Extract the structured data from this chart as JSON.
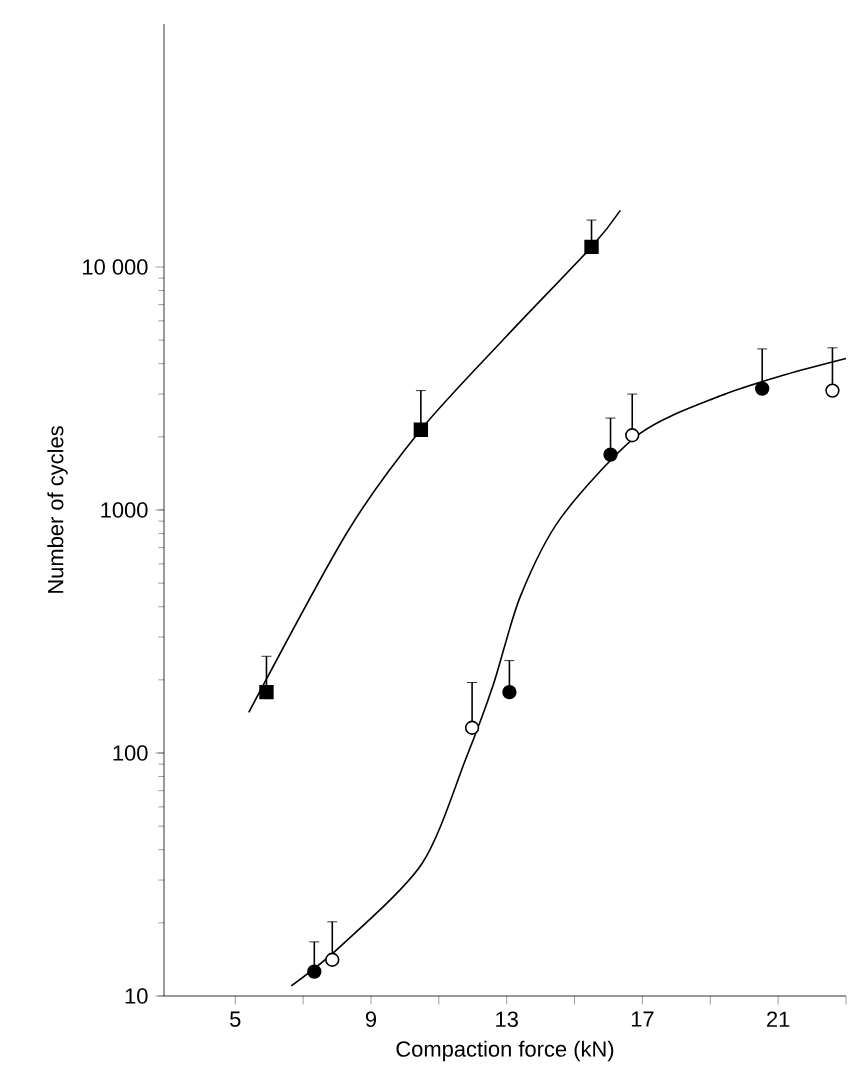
{
  "chart_data": {
    "type": "scatter",
    "xlabel": "Compaction force (kN)",
    "ylabel": "Number of cycles",
    "log": "y",
    "xlim": [
      2.9,
      23
    ],
    "ylim": [
      10,
      100000
    ],
    "xticks": [
      5,
      {
        "value": 7,
        "label": null
      },
      9,
      {
        "value": 11,
        "label": null
      },
      13,
      {
        "value": 15,
        "label": null
      },
      17,
      {
        "value": 19,
        "label": null
      },
      21,
      {
        "value": 23,
        "label": null
      }
    ],
    "yticks": [
      10,
      100,
      1000,
      {
        "value": 10000,
        "label": "10 000"
      }
    ],
    "series": [
      {
        "marker": "square",
        "color": "#000000",
        "x": [
          5.92,
          10.47,
          15.5
        ],
        "values": [
          178,
          2140,
          12100
        ],
        "errors": [
          [
            178,
            250
          ],
          [
            2140,
            3100
          ],
          [
            12100,
            15600
          ]
        ]
      },
      {
        "marker": "circle",
        "color": "#000000",
        "x": [
          7.33,
          13.08,
          16.06,
          20.53
        ],
        "values": [
          12.6,
          178,
          1690,
          3160
        ],
        "errors": [
          [
            12.6,
            16.7
          ],
          [
            178,
            240
          ],
          [
            1690,
            2390
          ],
          [
            3160,
            4600
          ]
        ]
      },
      {
        "marker": "circle",
        "color": "#ffffff",
        "x": [
          7.86,
          11.98,
          16.7,
          22.6
        ],
        "values": [
          14.1,
          127,
          2030,
          3100
        ],
        "errors": [
          [
            14.1,
            20.2
          ],
          [
            127,
            195
          ],
          [
            2030,
            3000
          ],
          [
            3100,
            4650
          ]
        ]
      },
      {
        "type": "line",
        "marker": "none",
        "color": "#000000",
        "x": [
          5.4,
          8.3,
          10.47,
          13.0,
          15.5,
          16.35
        ],
        "values": [
          147,
          810,
          2140,
          5200,
          12100,
          17100
        ]
      },
      {
        "type": "line",
        "marker": "none",
        "color": "#000000",
        "x": [
          6.65,
          8.1,
          10.5,
          11.8,
          12.6,
          13.4,
          14.6,
          16.9,
          19.3,
          21.2,
          23.0
        ],
        "values": [
          11,
          16,
          35,
          95,
          190,
          440,
          930,
          2050,
          2950,
          3600,
          4200
        ]
      }
    ]
  }
}
